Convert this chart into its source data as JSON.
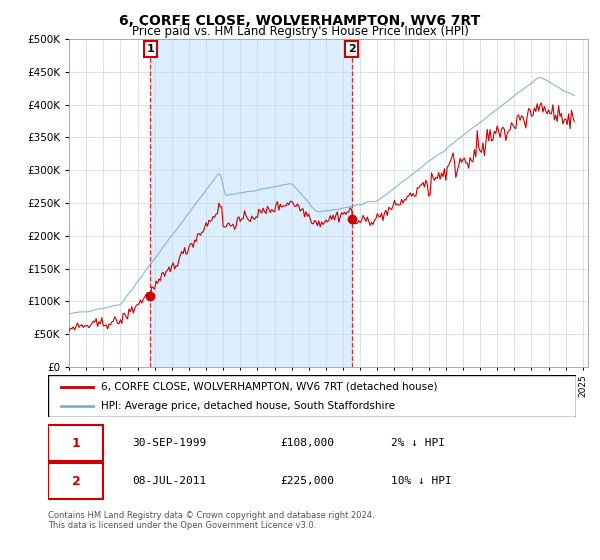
{
  "title": "6, CORFE CLOSE, WOLVERHAMPTON, WV6 7RT",
  "subtitle": "Price paid vs. HM Land Registry's House Price Index (HPI)",
  "legend_line1": "6, CORFE CLOSE, WOLVERHAMPTON, WV6 7RT (detached house)",
  "legend_line2": "HPI: Average price, detached house, South Staffordshire",
  "transaction1_date": "30-SEP-1999",
  "transaction1_price": "£108,000",
  "transaction1_hpi": "2% ↓ HPI",
  "transaction2_date": "08-JUL-2011",
  "transaction2_price": "£225,000",
  "transaction2_hpi": "10% ↓ HPI",
  "footer": "Contains HM Land Registry data © Crown copyright and database right 2024.\nThis data is licensed under the Open Government Licence v3.0.",
  "hpi_color": "#7bafd4",
  "price_color": "#cc0000",
  "vline_color": "#cc0000",
  "shade_color": "#ddeeff",
  "ylim": [
    0,
    500000
  ],
  "yticks": [
    0,
    50000,
    100000,
    150000,
    200000,
    250000,
    300000,
    350000,
    400000,
    450000,
    500000
  ],
  "transaction1_year": 1999.75,
  "transaction1_value": 108000,
  "transaction2_year": 2011.5,
  "transaction2_value": 225000,
  "xlim_start": 1995.0,
  "xlim_end": 2025.3
}
